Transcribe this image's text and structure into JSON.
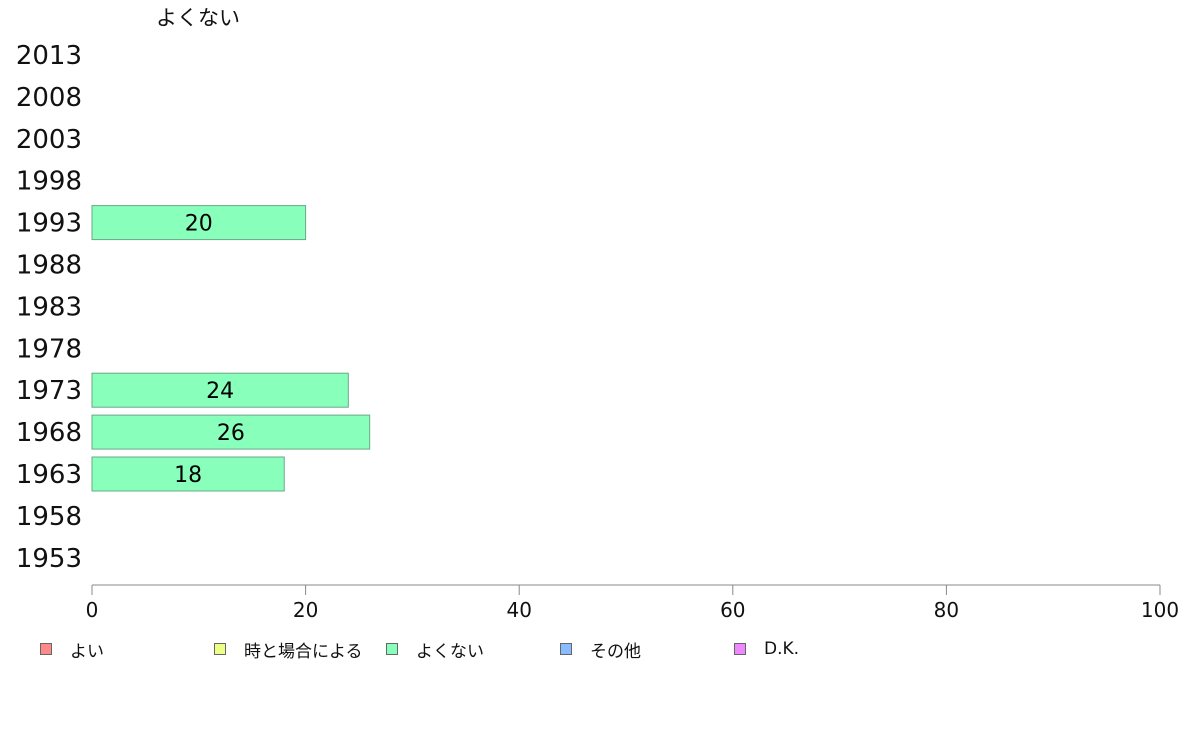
{
  "chart_data": {
    "type": "bar",
    "orientation": "horizontal",
    "title": "よくない",
    "categories": [
      "2013",
      "2008",
      "2003",
      "1998",
      "1993",
      "1988",
      "1983",
      "1978",
      "1973",
      "1968",
      "1963",
      "1958",
      "1953"
    ],
    "series": [
      {
        "name": "よくない",
        "color": "#88ffbb",
        "values": [
          null,
          null,
          null,
          null,
          20,
          null,
          null,
          null,
          24,
          26,
          18,
          null,
          null
        ]
      }
    ],
    "xlim": [
      0,
      100
    ],
    "xticks": [
      0,
      20,
      40,
      60,
      80,
      100
    ],
    "grid": false,
    "legend_position": "bottom",
    "legend": [
      {
        "label": "よい",
        "color": "#ff8888"
      },
      {
        "label": "時と場合による",
        "color": "#eeff88"
      },
      {
        "label": "よくない",
        "color": "#88ffbb"
      },
      {
        "label": "その他",
        "color": "#88bbff"
      },
      {
        "label": "D.K.",
        "color": "#ee88ff"
      }
    ]
  }
}
